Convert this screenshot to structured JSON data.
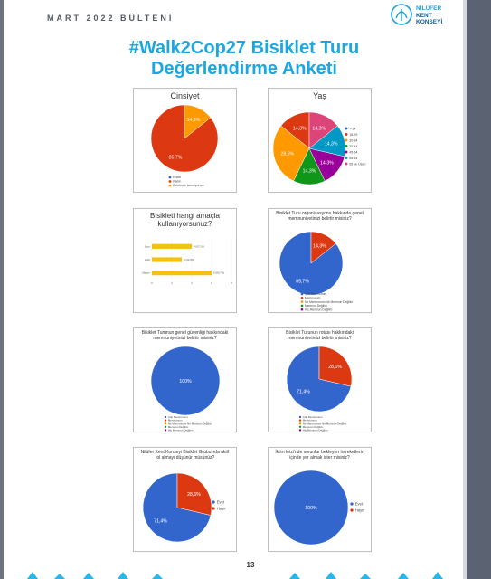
{
  "header": {
    "title": "MART 2022 BÜLTENİ",
    "logo": [
      "NİLÜFER",
      "KENT",
      "KONSEYİ"
    ]
  },
  "title": [
    "#Walk2Cop27 Bisiklet Turu",
    "Değerlendirme Anketi"
  ],
  "chart_data": [
    {
      "type": "pie",
      "title": "Cinsiyet",
      "categories": [
        "Erkek",
        "Kadın",
        "Belirtmek istemiyorum"
      ],
      "values": [
        0,
        85.7,
        14.3
      ],
      "value_labels": [
        null,
        "85,7%",
        "14,3%"
      ],
      "colors": [
        "#3366cc",
        "#dc3912",
        "#ff9900"
      ],
      "legend": "bottom"
    },
    {
      "type": "pie",
      "title": "Yaş",
      "categories": [
        "7-14",
        "18-29",
        "30-34",
        "35-44",
        "45-54",
        "55-64",
        "65 ve Üzeri"
      ],
      "values": [
        0,
        14.3,
        28.6,
        14.3,
        14.3,
        14.3,
        14.3
      ],
      "value_labels": [
        null,
        "14,3%",
        "28,6%",
        "14,3%",
        "14,3%",
        "14,3%",
        "14,3%"
      ],
      "colors": [
        "#3366cc",
        "#dc3912",
        "#ff9900",
        "#109618",
        "#990099",
        "#0099c6",
        "#dd4477"
      ],
      "legend": "right"
    },
    {
      "type": "bar",
      "title": "Bisikleti hangi amaçla kullanıyorsunuz?",
      "categories": [
        "Spor",
        "Hobi",
        "Ulaşım"
      ],
      "values": [
        4,
        3,
        6
      ],
      "value_labels": [
        "4 (57,1%)",
        "3 (42,9%)",
        "6 (85,7%)"
      ],
      "color": "#f4c20d",
      "xlim": [
        0,
        8
      ],
      "xticks": [
        0,
        2,
        4,
        6,
        8
      ],
      "grid": true
    },
    {
      "type": "pie",
      "title": "Bisiklet Turu organizasyonu hakkında genel memnuniyetinizi belirtir misiniz?",
      "categories": [
        "Çok Memnunum",
        "Memnunum",
        "Ne Memnunum Ne Memnun Değilim",
        "Memnun Değilim",
        "Hiç Memnun Değilim"
      ],
      "values": [
        85.7,
        14.3,
        0,
        0,
        0
      ],
      "value_labels": [
        "85,7%",
        "14,3%",
        null,
        null,
        null
      ],
      "colors": [
        "#3366cc",
        "#dc3912",
        "#ff9900",
        "#109618",
        "#990099"
      ],
      "legend": "bottom"
    },
    {
      "type": "pie",
      "title": "Bisiklet Turunun genel güvenliği hakkındaki memnuniyetinizi belirtir misiniz?",
      "categories": [
        "Çok Memnunum",
        "Memnunum",
        "Ne Memnunum Ne Memnun Değilim",
        "Memnun Değilim",
        "Hiç Memnun Değilim"
      ],
      "values": [
        100,
        0,
        0,
        0,
        0
      ],
      "value_labels": [
        "100%",
        null,
        null,
        null,
        null
      ],
      "colors": [
        "#3366cc",
        "#dc3912",
        "#ff9900",
        "#109618",
        "#990099"
      ],
      "legend": "bottom"
    },
    {
      "type": "pie",
      "title": "Bisiklet Turunun rotası hakkındaki memnuniyetinizi belirtir misiniz?",
      "categories": [
        "Çok Memnunum",
        "Memnunum",
        "Ne Memnunum Ne Memnun Değilim",
        "Memnun Değilim",
        "Hiç Memnun Değilim"
      ],
      "values": [
        71.4,
        28.6,
        0,
        0,
        0
      ],
      "value_labels": [
        "71,4%",
        "28,6%",
        null,
        null,
        null
      ],
      "colors": [
        "#3366cc",
        "#dc3912",
        "#ff9900",
        "#109618",
        "#990099"
      ],
      "legend": "bottom"
    },
    {
      "type": "pie",
      "title": "Nilüfer Kent Konseyi Bisiklet Grubu'nda aktif rol almayı düşünür müsünüz?",
      "categories": [
        "Evet",
        "Hayır"
      ],
      "values": [
        71.4,
        28.6
      ],
      "value_labels": [
        "71,4%",
        "28,6%"
      ],
      "colors": [
        "#3366cc",
        "#dc3912"
      ],
      "legend": "right"
    },
    {
      "type": "pie",
      "title": "İklim krizi'nde sorunlar bekleyen hareketlerin içinde yer almak ister misiniz?",
      "categories": [
        "Evet",
        "Hayır"
      ],
      "values": [
        100,
        0
      ],
      "value_labels": [
        "100%",
        null
      ],
      "colors": [
        "#3366cc",
        "#dc3912"
      ],
      "legend": "right"
    }
  ],
  "page_number": "13"
}
